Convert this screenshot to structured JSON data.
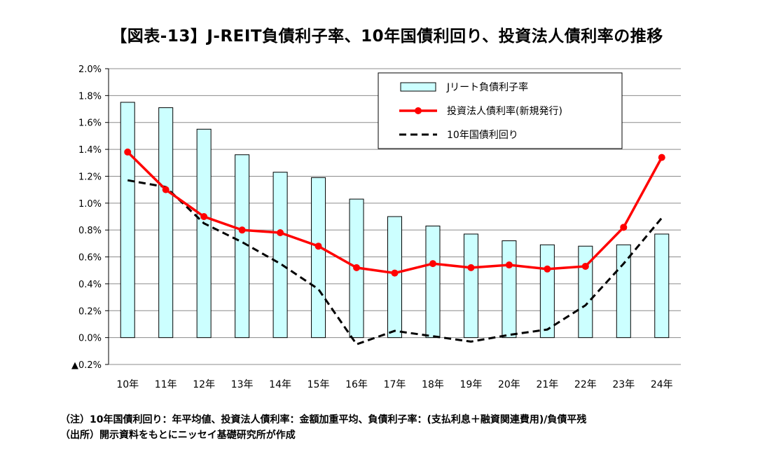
{
  "title": "【図表-13】J-REIT負債利子率、10年国債利回り、投資法人債利率の推移",
  "notes": {
    "note1": "（注）10年国債利回り：年平均値、投資法人債利率：金額加重平均、負債利子率：(支払利息＋融資関連費用)/負債平残",
    "note2": "（出所）開示資料をもとにニッセイ基礎研究所が作成"
  },
  "chart_data": {
    "type": "bar",
    "categories": [
      "10年",
      "11年",
      "12年",
      "13年",
      "14年",
      "15年",
      "16年",
      "17年",
      "18年",
      "19年",
      "20年",
      "21年",
      "22年",
      "23年",
      "24年"
    ],
    "ylim": [
      -0.2,
      2.0
    ],
    "ytick_values": [
      -0.2,
      0.0,
      0.2,
      0.4,
      0.6,
      0.8,
      1.0,
      1.2,
      1.4,
      1.6,
      1.8,
      2.0
    ],
    "ytick_labels": [
      "▲0.2%",
      "0.0%",
      "0.2%",
      "0.4%",
      "0.6%",
      "0.8%",
      "1.0%",
      "1.2%",
      "1.4%",
      "1.6%",
      "1.8%",
      "2.0%"
    ],
    "grid": true,
    "legend_position": "top-right",
    "series": [
      {
        "name": "Jリート負債利子率",
        "type": "bar",
        "color": "#ccffff",
        "stroke": "#000000",
        "values": [
          1.75,
          1.71,
          1.55,
          1.36,
          1.23,
          1.19,
          1.03,
          0.9,
          0.83,
          0.77,
          0.72,
          0.69,
          0.68,
          0.69,
          0.77
        ]
      },
      {
        "name": "投資法人債利率(新規発行)",
        "type": "line",
        "color": "#ff0000",
        "marker": "circle",
        "values": [
          1.38,
          1.1,
          0.9,
          0.8,
          0.78,
          0.68,
          0.52,
          0.48,
          0.55,
          0.52,
          0.54,
          0.51,
          0.53,
          0.82,
          1.34
        ]
      },
      {
        "name": "10年国債利回り",
        "type": "line",
        "color": "#000000",
        "dash": true,
        "values": [
          1.17,
          1.12,
          0.85,
          0.71,
          0.55,
          0.36,
          -0.05,
          0.05,
          0.01,
          -0.03,
          0.02,
          0.06,
          0.24,
          0.55,
          0.89
        ]
      }
    ]
  }
}
